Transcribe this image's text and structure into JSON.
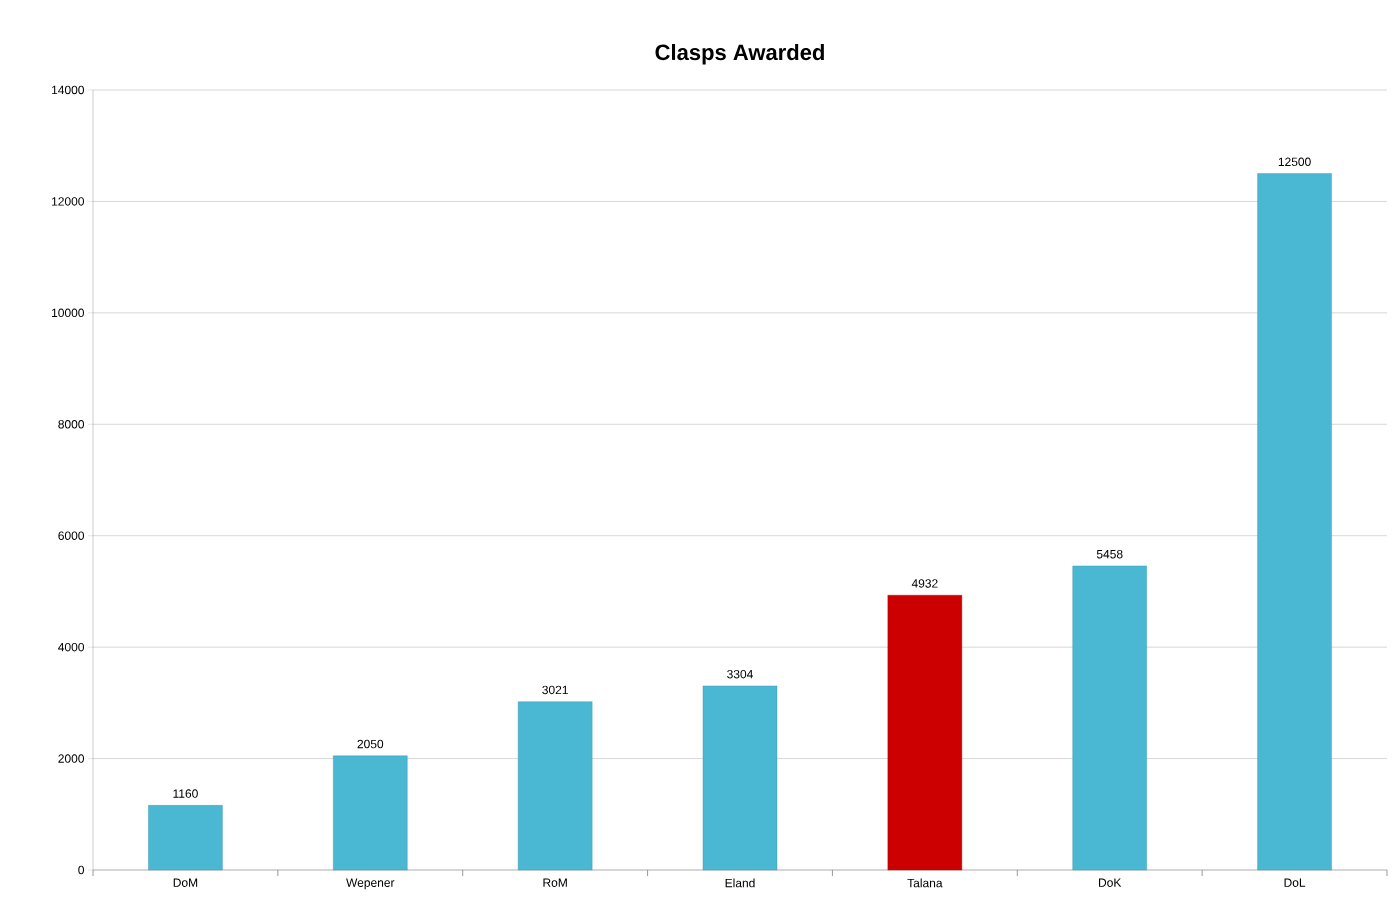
{
  "chart_data": {
    "type": "bar",
    "title": "Clasps Awarded",
    "categories": [
      "DoM",
      "Wepener",
      "RoM",
      "Eland",
      "Talana",
      "DoK",
      "DoL"
    ],
    "values": [
      1160,
      2050,
      3021,
      3304,
      4932,
      5458,
      12500
    ],
    "colors": [
      "#4bb8d3",
      "#4bb8d3",
      "#4bb8d3",
      "#4bb8d3",
      "#cc0000",
      "#4bb8d3",
      "#4bb8d3"
    ],
    "ylim": [
      0,
      14000
    ],
    "yticks": [
      0,
      2000,
      4000,
      6000,
      8000,
      10000,
      12000,
      14000
    ],
    "grid": "y",
    "data_labels": true
  }
}
